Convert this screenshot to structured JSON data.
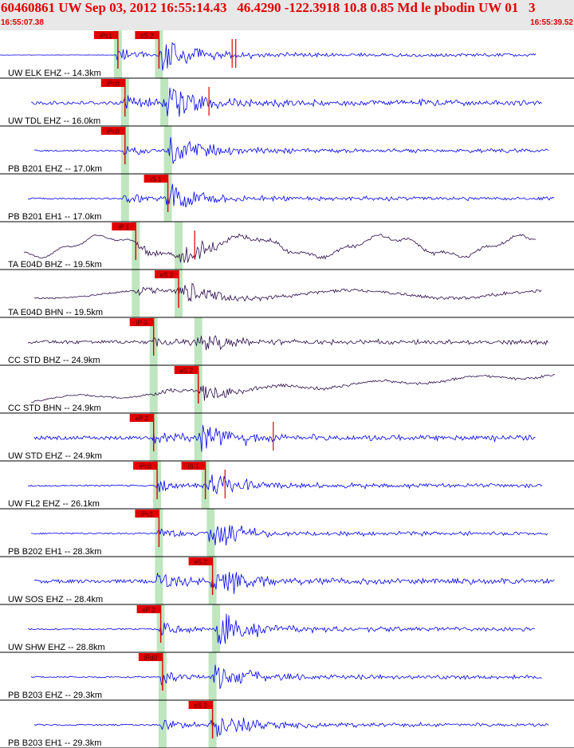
{
  "header": {
    "title": "60460861 UW Sep 03, 2012 16:55:14.43   46.4290 -122.3918 10.8 0.85 Md le pbodin UW 01   3",
    "start_time": "16:55:07.38",
    "end_time": "16:55:39.52"
  },
  "colors": {
    "header_text": "#e00000",
    "trace_blue": "#0000ee",
    "trace_dark": "#2a0a4a",
    "pick": "#e00000",
    "window": "#bfe6bf",
    "separator": "#000000"
  },
  "chart_data": {
    "type": "line",
    "x_range_s": [
      0,
      32.14
    ],
    "traces": [
      {
        "label": "UW ELK EHZ -- 14.3km",
        "color": "blue",
        "p_pick": "iPc1",
        "p_s": 6.6,
        "s_pick": "eS 2",
        "s_s": 8.9,
        "amp": 0.9,
        "bg": "flat",
        "extra_marks": [
          13.0,
          13.2
        ]
      },
      {
        "label": "UW TDL EHZ -- 16.0km",
        "color": "blue",
        "p_pick": "iPc0",
        "p_s": 7.0,
        "s_pick": "",
        "s_s": 9.2,
        "amp": 1.0,
        "bg": "noise",
        "extra_marks": [
          11.7
        ]
      },
      {
        "label": "PB B201 EHZ -- 17.0km",
        "color": "blue",
        "p_pick": "iPc0",
        "p_s": 7.0,
        "s_pick": "",
        "s_s": 9.4,
        "amp": 0.9,
        "bg": "low",
        "extra_marks": []
      },
      {
        "label": "PB B201 EH1 -- 17.0km",
        "color": "blue",
        "p_pick": "",
        "p_s": 7.0,
        "s_pick": "iS 1",
        "s_s": 9.4,
        "amp": 0.8,
        "bg": "low",
        "extra_marks": []
      },
      {
        "label": "TA E04D BHZ -- 19.5km",
        "color": "dark",
        "p_pick": "iP 1",
        "p_s": 7.6,
        "s_pick": "",
        "s_s": 10.0,
        "amp": 0.7,
        "bg": "wave",
        "extra_marks": [
          10.9
        ]
      },
      {
        "label": "TA E04D BHN -- 19.5km",
        "color": "dark",
        "p_pick": "",
        "p_s": 7.6,
        "s_pick": "eS 2",
        "s_s": 10.0,
        "amp": 0.7,
        "bg": "drift",
        "extra_marks": []
      },
      {
        "label": "CC STD BHZ -- 24.9km",
        "color": "dark",
        "p_pick": "iP 0",
        "p_s": 8.6,
        "s_pick": "",
        "s_s": 11.1,
        "amp": 0.6,
        "bg": "noise",
        "extra_marks": []
      },
      {
        "label": "CC STD BHN -- 24.9km",
        "color": "dark",
        "p_pick": "",
        "p_s": 8.6,
        "s_pick": "eS 2",
        "s_s": 11.1,
        "amp": 0.5,
        "bg": "ramp",
        "extra_marks": []
      },
      {
        "label": "UW STD EHZ -- 24.9km",
        "color": "blue",
        "p_pick": "eP 2",
        "p_s": 8.6,
        "s_pick": "",
        "s_s": 11.1,
        "amp": 1.0,
        "bg": "noise",
        "extra_marks": [
          15.3
        ]
      },
      {
        "label": "UW FL2 EHZ -- 26.1km",
        "color": "blue",
        "p_pick": "iPc0",
        "p_s": 8.8,
        "s_pick": "iS 1",
        "s_s": 11.5,
        "amp": 0.9,
        "bg": "low",
        "extra_marks": [
          12.6
        ]
      },
      {
        "label": "PB B202 EH1 -- 28.3km",
        "color": "blue",
        "p_pick": "iPc1",
        "p_s": 8.9,
        "s_pick": "",
        "s_s": 11.8,
        "amp": 0.8,
        "bg": "low",
        "extra_marks": []
      },
      {
        "label": "UW SOS EHZ -- 28.4km",
        "color": "blue",
        "p_pick": "",
        "p_s": 8.9,
        "s_pick": "eS 2",
        "s_s": 11.9,
        "amp": 1.0,
        "bg": "noise",
        "extra_marks": []
      },
      {
        "label": "UW SHW EHZ -- 28.8km",
        "color": "blue",
        "p_pick": "eP 2",
        "p_s": 9.0,
        "s_pick": "",
        "s_s": 12.1,
        "amp": 1.0,
        "bg": "low",
        "extra_marks": []
      },
      {
        "label": "PB B203 EHZ -- 29.3km",
        "color": "blue",
        "p_pick": "iPd0",
        "p_s": 9.1,
        "s_pick": "",
        "s_s": 11.9,
        "amp": 0.9,
        "bg": "low",
        "extra_marks": []
      },
      {
        "label": "PB B203 EH1 -- 29.3km",
        "color": "blue",
        "p_pick": "",
        "p_s": 9.1,
        "s_pick": "eS 2",
        "s_s": 11.9,
        "amp": 0.8,
        "bg": "low",
        "extra_marks": []
      }
    ]
  }
}
